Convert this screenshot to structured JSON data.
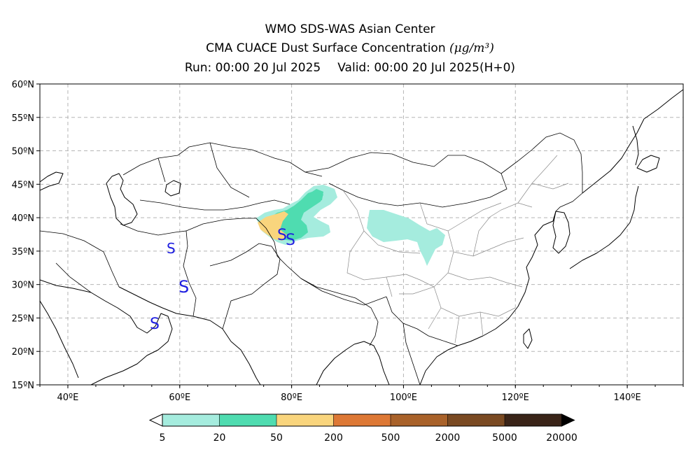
{
  "header": {
    "line1": "WMO SDS-WAS Asian Center",
    "line2": "CMA CUACE Dust Surface Concentration",
    "unit": "(μg/m³)",
    "run": "Run: 00:00 20 Jul 2025",
    "valid": "Valid: 00:00 20 Jul 2025(H+0)"
  },
  "axes": {
    "lon_labels": [
      "40ºE",
      "60ºE",
      "80ºE",
      "100ºE",
      "120ºE",
      "140ºE"
    ],
    "lat_labels": [
      "60ºN",
      "55ºN",
      "50ºN",
      "45ºN",
      "40ºN",
      "35ºN",
      "30ºN",
      "25ºN",
      "20ºN",
      "15ºN"
    ],
    "lon_range": [
      35,
      150
    ],
    "lat_range": [
      15,
      60
    ],
    "grid": "dashed"
  },
  "legend": {
    "labels": [
      "5",
      "20",
      "50",
      "200",
      "500",
      "2000",
      "5000",
      "20000"
    ],
    "colors": [
      "#a5ecde",
      "#4fdcb0",
      "#f9d57d",
      "#dd7835",
      "#a9622a",
      "#7a4a22",
      "#3a2418"
    ]
  },
  "markers": {
    "symbol": "S",
    "color": "#1e1ee0",
    "count": 5
  }
}
